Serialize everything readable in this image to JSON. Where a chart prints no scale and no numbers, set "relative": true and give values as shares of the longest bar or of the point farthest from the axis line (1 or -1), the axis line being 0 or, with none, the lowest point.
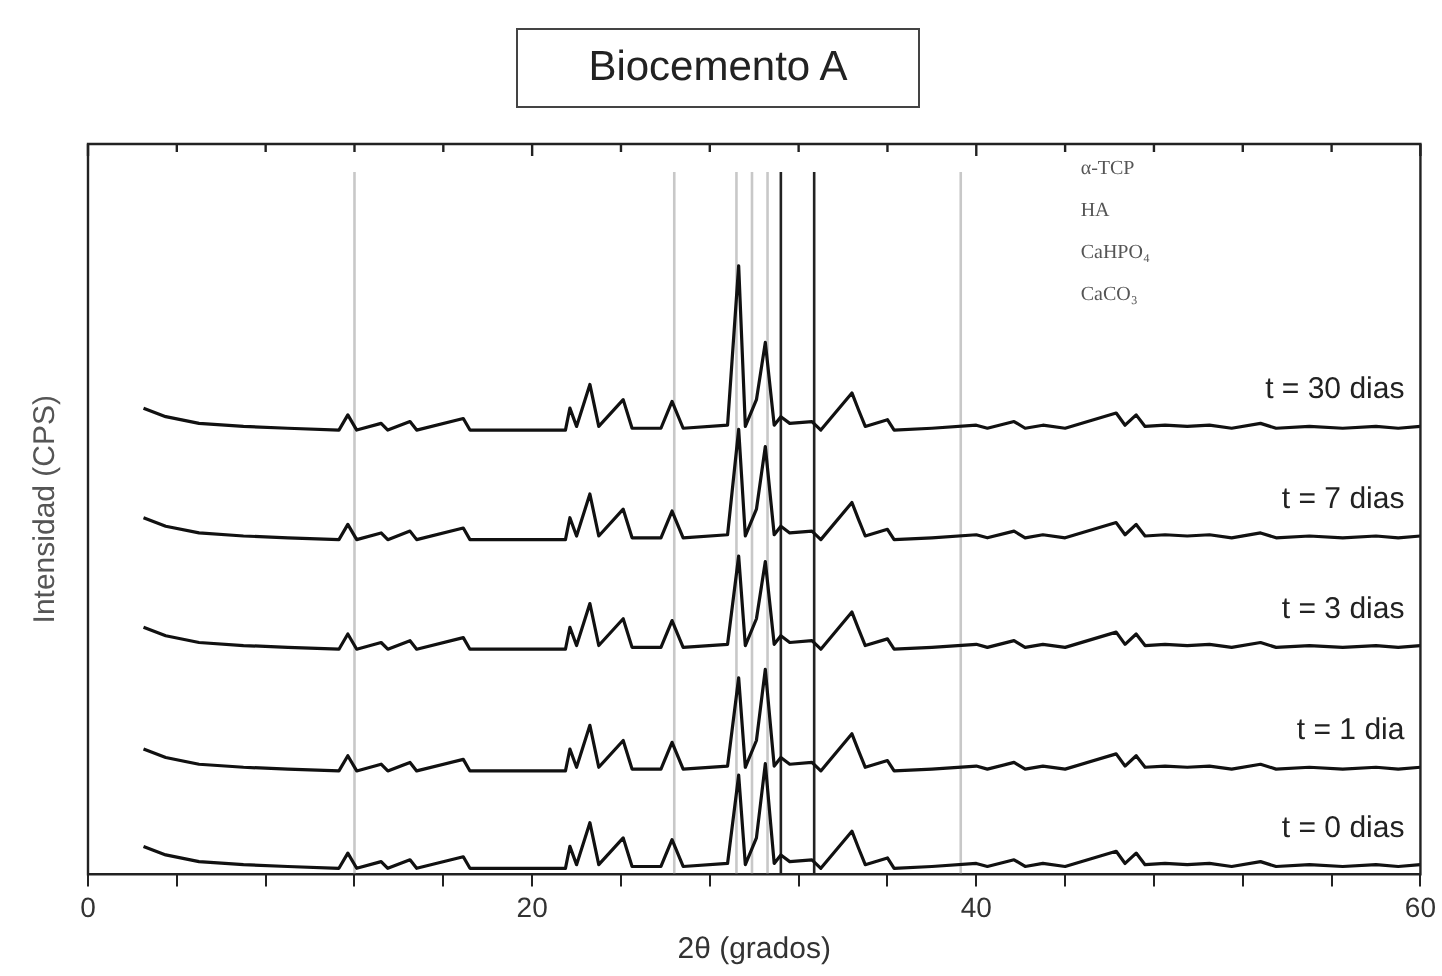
{
  "chart_data": {
    "type": "line",
    "title": "Biocemento A",
    "xlabel": "2θ (grados)",
    "ylabel": "Intensidad (CPS)",
    "relative": true,
    "xlim": [
      0,
      60
    ],
    "xticks": [
      0,
      {
        "value": 4,
        "label": null
      },
      {
        "value": 8,
        "label": null
      },
      {
        "value": 12,
        "label": null
      },
      {
        "value": 16,
        "label": null
      },
      20,
      {
        "value": 24,
        "label": null
      },
      {
        "value": 28,
        "label": null
      },
      {
        "value": 32,
        "label": null
      },
      {
        "value": 36,
        "label": null
      },
      40,
      {
        "value": 44,
        "label": null
      },
      {
        "value": 48,
        "label": null
      },
      {
        "value": 52,
        "label": null
      },
      {
        "value": 56,
        "label": null
      },
      60
    ],
    "x": [
      2.5,
      3.5,
      5,
      7,
      9,
      11.3,
      11.7,
      12.1,
      13.2,
      13.5,
      14.5,
      14.8,
      16.9,
      17.2,
      20,
      21.5,
      21.7,
      22,
      22.6,
      23,
      24.1,
      24.5,
      25.8,
      26.3,
      26.8,
      28.8,
      29.3,
      29.6,
      30.1,
      30.5,
      30.9,
      31.2,
      31.6,
      32.6,
      33,
      34.4,
      34.7,
      35,
      36,
      36.3,
      38,
      40,
      40.5,
      41.7,
      42.2,
      43,
      44,
      46.3,
      46.7,
      47.2,
      47.6,
      48.5,
      49.5,
      50.5,
      51.5,
      52.8,
      53.5,
      55,
      56.5,
      58,
      59,
      60
    ],
    "series": [
      {
        "name": "t = 30 dias",
        "color": "#111111",
        "values": [
          0.766,
          0.752,
          0.741,
          0.736,
          0.733,
          0.73,
          0.755,
          0.73,
          0.741,
          0.73,
          0.744,
          0.73,
          0.749,
          0.73,
          0.73,
          0.73,
          0.766,
          0.736,
          0.805,
          0.736,
          0.78,
          0.733,
          0.733,
          0.777,
          0.733,
          0.738,
          1,
          0.736,
          0.78,
          0.874,
          0.738,
          0.752,
          0.741,
          0.744,
          0.73,
          0.791,
          0.763,
          0.736,
          0.747,
          0.73,
          0.733,
          0.738,
          0.733,
          0.744,
          0.733,
          0.738,
          0.733,
          0.758,
          0.738,
          0.755,
          0.736,
          0.738,
          0.736,
          0.738,
          0.733,
          0.741,
          0.733,
          0.736,
          0.733,
          0.736,
          0.733,
          0.736
        ]
      },
      {
        "name": "t = 7 dias",
        "color": "#111111",
        "values": [
          0.586,
          0.572,
          0.561,
          0.556,
          0.553,
          0.55,
          0.575,
          0.55,
          0.561,
          0.55,
          0.564,
          0.55,
          0.569,
          0.55,
          0.55,
          0.55,
          0.586,
          0.556,
          0.625,
          0.556,
          0.6,
          0.553,
          0.553,
          0.597,
          0.553,
          0.558,
          0.731,
          0.556,
          0.6,
          0.703,
          0.558,
          0.572,
          0.561,
          0.564,
          0.55,
          0.611,
          0.583,
          0.556,
          0.567,
          0.55,
          0.553,
          0.558,
          0.553,
          0.564,
          0.553,
          0.558,
          0.553,
          0.578,
          0.558,
          0.575,
          0.556,
          0.558,
          0.556,
          0.558,
          0.553,
          0.561,
          0.553,
          0.556,
          0.553,
          0.556,
          0.553,
          0.556
        ]
      },
      {
        "name": "t = 3 dias",
        "color": "#111111",
        "values": [
          0.406,
          0.392,
          0.381,
          0.376,
          0.373,
          0.37,
          0.395,
          0.37,
          0.381,
          0.37,
          0.384,
          0.37,
          0.389,
          0.37,
          0.37,
          0.37,
          0.406,
          0.376,
          0.445,
          0.376,
          0.42,
          0.373,
          0.373,
          0.417,
          0.373,
          0.378,
          0.523,
          0.376,
          0.42,
          0.514,
          0.378,
          0.392,
          0.381,
          0.384,
          0.37,
          0.431,
          0.403,
          0.376,
          0.387,
          0.37,
          0.373,
          0.378,
          0.373,
          0.384,
          0.373,
          0.378,
          0.373,
          0.398,
          0.378,
          0.395,
          0.376,
          0.378,
          0.376,
          0.378,
          0.373,
          0.381,
          0.373,
          0.376,
          0.373,
          0.376,
          0.373,
          0.376
        ]
      },
      {
        "name": "t = 1 dia",
        "color": "#111111",
        "values": [
          0.206,
          0.192,
          0.181,
          0.176,
          0.173,
          0.17,
          0.195,
          0.17,
          0.181,
          0.17,
          0.184,
          0.17,
          0.189,
          0.17,
          0.17,
          0.17,
          0.206,
          0.176,
          0.245,
          0.176,
          0.22,
          0.173,
          0.173,
          0.217,
          0.173,
          0.178,
          0.323,
          0.176,
          0.22,
          0.337,
          0.178,
          0.192,
          0.181,
          0.184,
          0.17,
          0.231,
          0.203,
          0.176,
          0.187,
          0.17,
          0.173,
          0.178,
          0.173,
          0.184,
          0.173,
          0.178,
          0.173,
          0.198,
          0.178,
          0.195,
          0.176,
          0.178,
          0.176,
          0.178,
          0.173,
          0.181,
          0.173,
          0.176,
          0.173,
          0.176,
          0.173,
          0.176
        ]
      },
      {
        "name": "t = 0 dias",
        "color": "#111111",
        "values": [
          0.046,
          0.032,
          0.021,
          0.016,
          0.013,
          0.01,
          0.035,
          0.01,
          0.021,
          0.01,
          0.024,
          0.01,
          0.029,
          0.01,
          0.01,
          0.01,
          0.046,
          0.016,
          0.085,
          0.016,
          0.06,
          0.013,
          0.013,
          0.057,
          0.013,
          0.018,
          0.163,
          0.016,
          0.06,
          0.182,
          0.018,
          0.032,
          0.021,
          0.024,
          0.01,
          0.071,
          0.043,
          0.016,
          0.027,
          0.01,
          0.013,
          0.018,
          0.013,
          0.024,
          0.013,
          0.018,
          0.013,
          0.038,
          0.018,
          0.035,
          0.016,
          0.018,
          0.016,
          0.018,
          0.013,
          0.021,
          0.013,
          0.016,
          0.013,
          0.016,
          0.013,
          0.016
        ]
      }
    ],
    "ref_lines": [
      {
        "axis": "x",
        "value": 12,
        "color": "#c8c8c8"
      },
      {
        "axis": "x",
        "value": 26.4,
        "color": "#c8c8c8"
      },
      {
        "axis": "x",
        "value": 29.2,
        "color": "#c8c8c8"
      },
      {
        "axis": "x",
        "value": 29.9,
        "color": "#c8c8c8"
      },
      {
        "axis": "x",
        "value": 30.6,
        "color": "#c8c8c8"
      },
      {
        "axis": "x",
        "value": 31.2,
        "color": "#222222"
      },
      {
        "axis": "x",
        "value": 32.7,
        "color": "#222222"
      },
      {
        "axis": "x",
        "value": 39.3,
        "color": "#c8c8c8"
      }
    ],
    "annotations": [
      "α-TCP",
      "HA",
      "CaHPO₄",
      "CaCO₃"
    ],
    "grid": false,
    "legend": false,
    "marker": "none",
    "line_style": "solid"
  }
}
